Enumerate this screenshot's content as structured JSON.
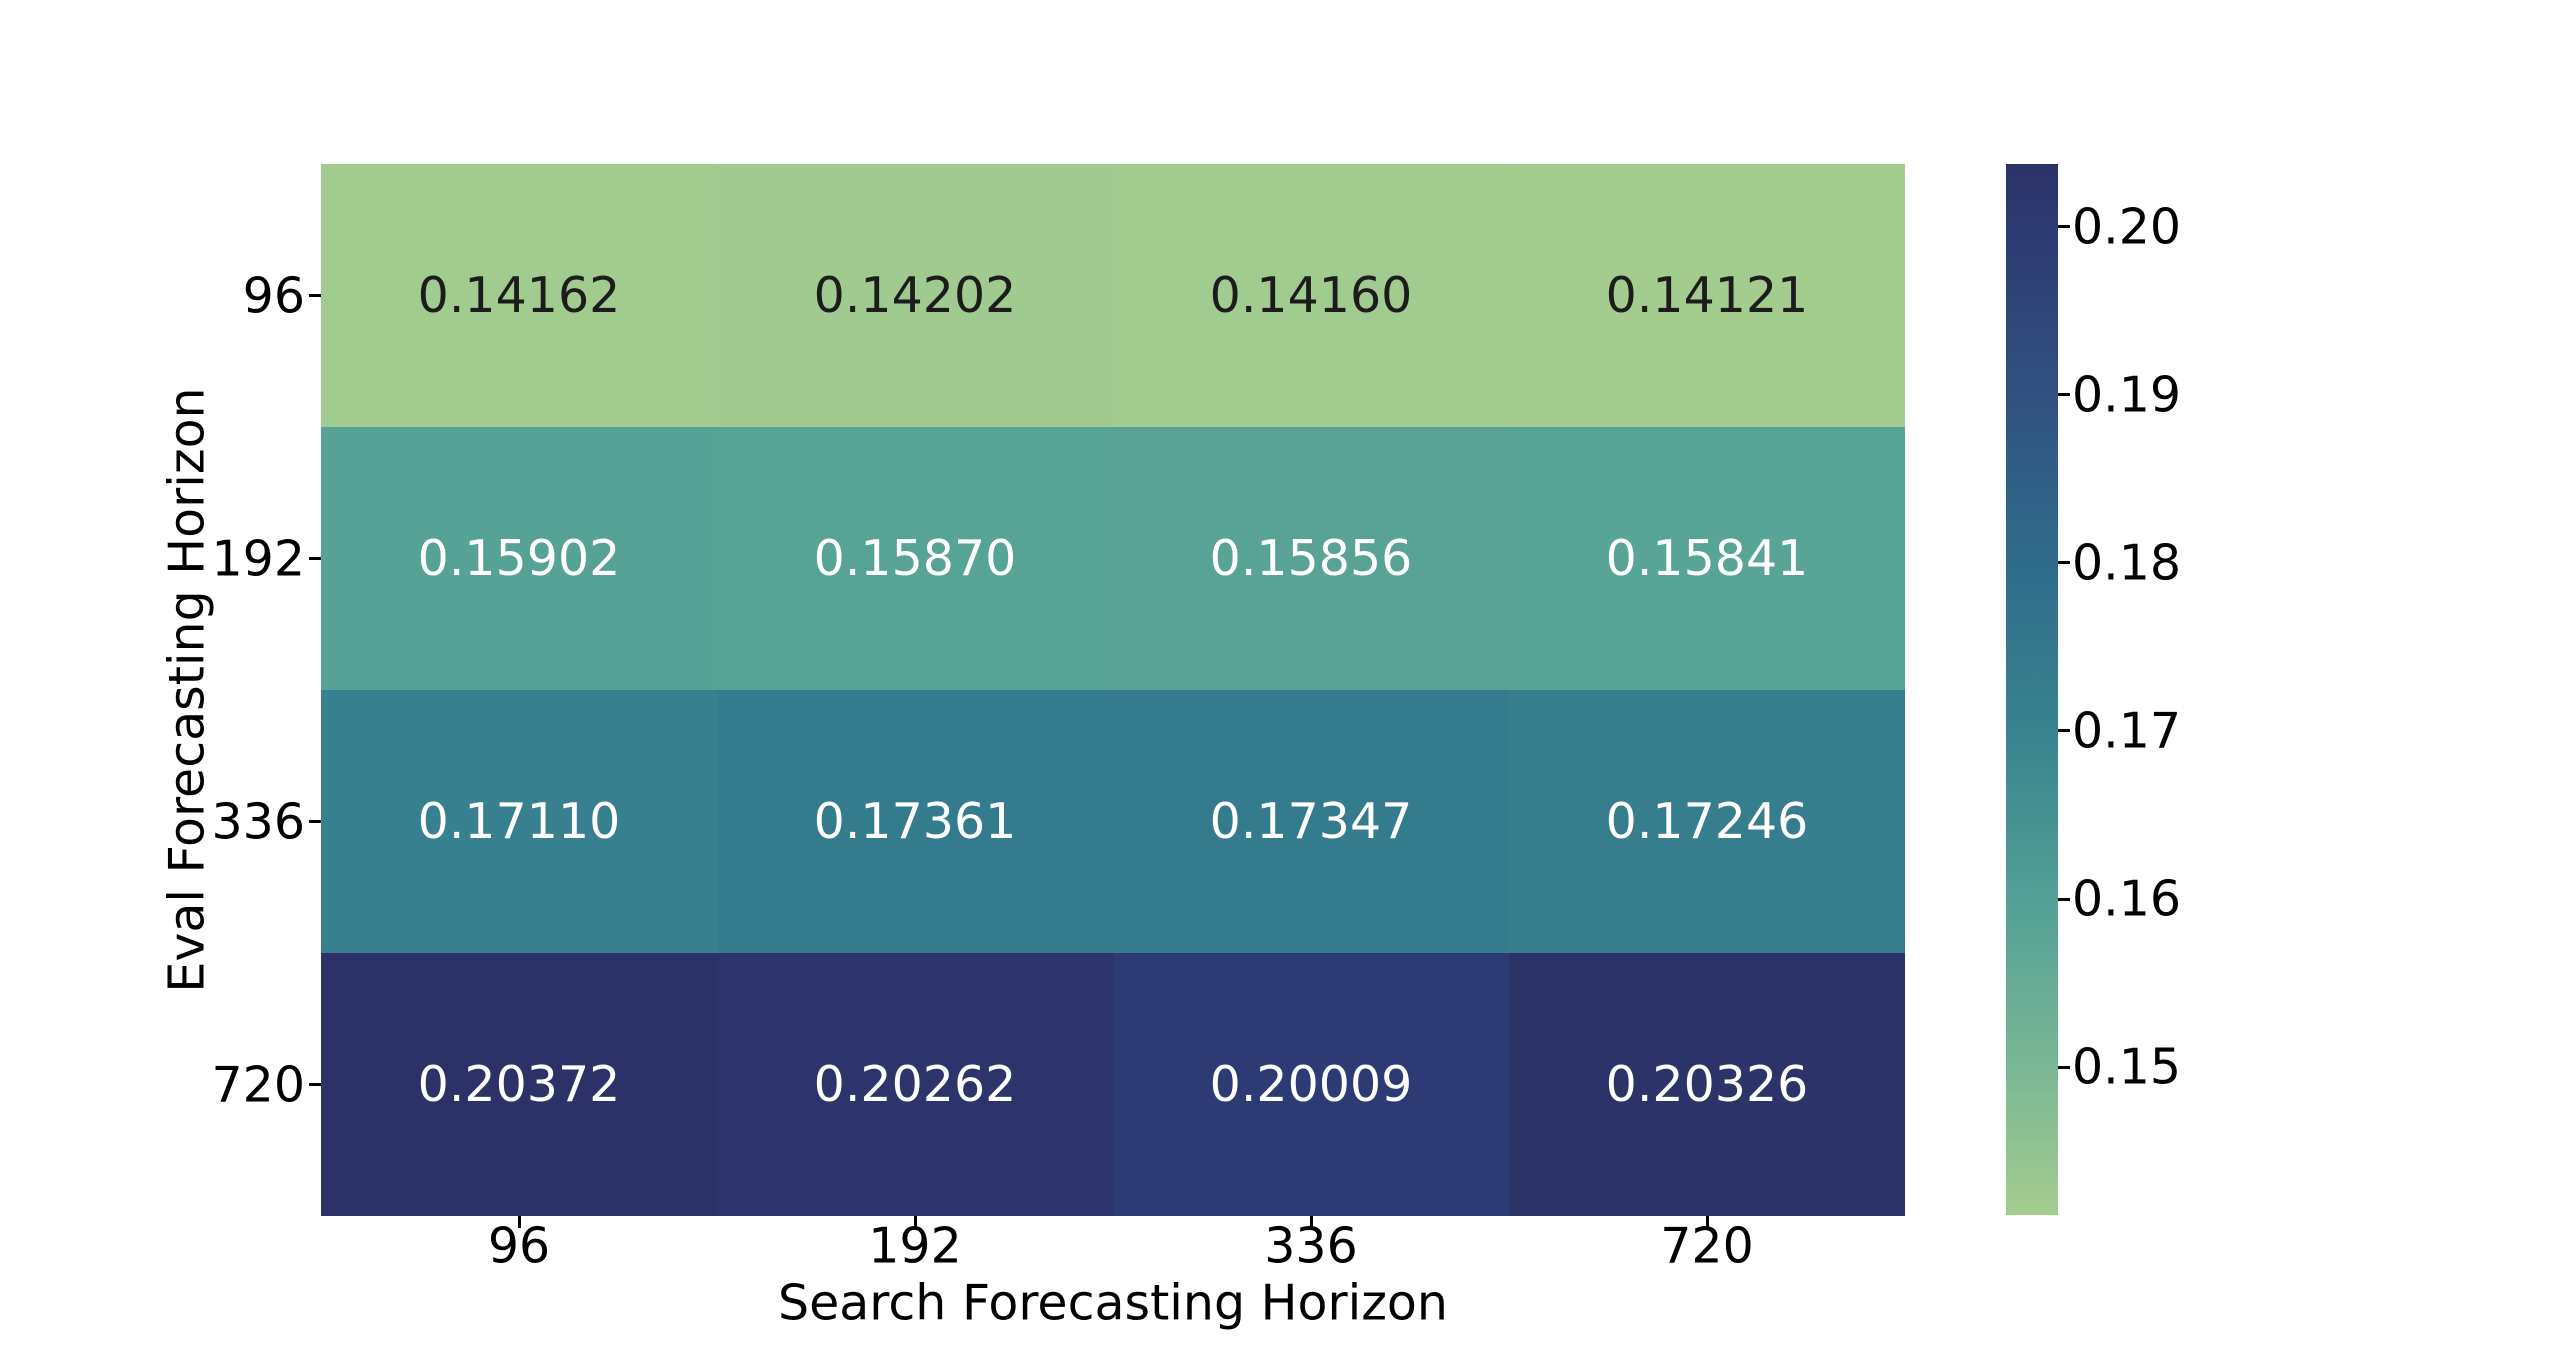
{
  "chart_data": {
    "type": "heatmap",
    "title": "",
    "xlabel": "Search Forecasting Horizon",
    "ylabel": "Eval Forecasting Horizon",
    "x_categories": [
      "96",
      "192",
      "336",
      "720"
    ],
    "y_categories": [
      "96",
      "192",
      "336",
      "720"
    ],
    "cell_labels": [
      [
        "0.14162",
        "0.14202",
        "0.14160",
        "0.14121"
      ],
      [
        "0.15902",
        "0.15870",
        "0.15856",
        "0.15841"
      ],
      [
        "0.17110",
        "0.17361",
        "0.17347",
        "0.17246"
      ],
      [
        "0.20372",
        "0.20262",
        "0.20009",
        "0.20326"
      ]
    ],
    "values": [
      [
        0.14162,
        0.14202,
        0.1416,
        0.14121
      ],
      [
        0.15902,
        0.1587,
        0.15856,
        0.15841
      ],
      [
        0.1711,
        0.17361,
        0.17347,
        0.17246
      ],
      [
        0.20372,
        0.20262,
        0.20009,
        0.20326
      ]
    ],
    "colorbar": {
      "tick_labels": [
        "0.20",
        "0.19",
        "0.18",
        "0.17",
        "0.16",
        "0.15"
      ],
      "tick_values": [
        0.2,
        0.19,
        0.18,
        0.17,
        0.16,
        0.15
      ]
    },
    "colormap": {
      "name": "crest",
      "stops": [
        {
          "t": 0.0,
          "color": "#a4cc8f"
        },
        {
          "t": 0.14,
          "color": "#7ab795"
        },
        {
          "t": 0.3,
          "color": "#52a096"
        },
        {
          "t": 0.46,
          "color": "#38838f"
        },
        {
          "t": 0.62,
          "color": "#2f6c8b"
        },
        {
          "t": 0.78,
          "color": "#315180"
        },
        {
          "t": 0.94,
          "color": "#2d3a73"
        },
        {
          "t": 1.0,
          "color": "#2c3268"
        }
      ]
    },
    "annotation_color_dark": "#1c1c1c",
    "annotation_color_light": "#ffffff",
    "axis_color": "#000000",
    "grid": false,
    "legend_position": "right-colorbar",
    "xlim": [
      "96",
      "720"
    ],
    "ylim": [
      "96",
      "720"
    ]
  }
}
